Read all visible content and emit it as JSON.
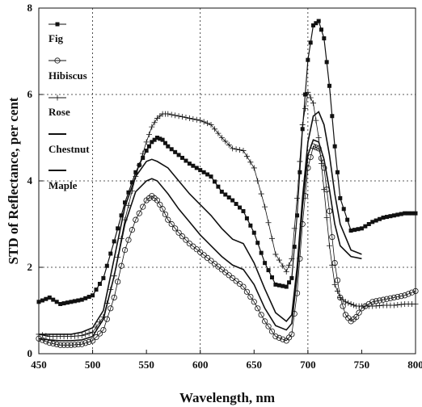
{
  "chart_data": {
    "type": "line",
    "xlabel": "Wavelength, nm",
    "ylabel": "STD of Reflectance, per cent",
    "xlim": [
      450,
      800
    ],
    "ylim": [
      0,
      8
    ],
    "x_ticks": [
      "450",
      "500",
      "550",
      "600",
      "650",
      "700",
      "750",
      "800"
    ],
    "y_ticks": [
      "0",
      "2",
      "4",
      "6",
      "8"
    ],
    "grid": "dotted, x at 500/600/700, y at 2/4/6",
    "legend_position": "top-left",
    "series": [
      {
        "name": "Fig",
        "marker": "filled-square",
        "color": "#111111",
        "x": [
          450,
          460,
          470,
          480,
          490,
          500,
          510,
          520,
          530,
          540,
          550,
          555,
          560,
          565,
          570,
          580,
          590,
          600,
          610,
          620,
          630,
          640,
          650,
          660,
          670,
          680,
          685,
          690,
          695,
          700,
          705,
          710,
          715,
          720,
          725,
          730,
          740,
          750,
          760,
          770,
          780,
          790,
          800
        ],
        "y": [
          1.2,
          1.3,
          1.15,
          1.2,
          1.25,
          1.35,
          1.75,
          2.6,
          3.5,
          4.2,
          4.7,
          4.9,
          5.0,
          4.95,
          4.8,
          4.6,
          4.4,
          4.25,
          4.1,
          3.75,
          3.55,
          3.3,
          2.8,
          2.1,
          1.6,
          1.55,
          1.75,
          3.2,
          5.2,
          6.8,
          7.6,
          7.7,
          7.3,
          6.2,
          4.8,
          3.6,
          2.85,
          2.9,
          3.05,
          3.15,
          3.2,
          3.25,
          3.25
        ]
      },
      {
        "name": "Hibiscus",
        "marker": "open-circle",
        "color": "#111111",
        "x": [
          450,
          460,
          470,
          480,
          490,
          500,
          510,
          520,
          530,
          540,
          550,
          555,
          560,
          565,
          570,
          580,
          590,
          600,
          610,
          620,
          630,
          640,
          650,
          660,
          670,
          680,
          685,
          690,
          695,
          700,
          705,
          710,
          715,
          720,
          725,
          730,
          735,
          740,
          745,
          750,
          760,
          770,
          780,
          790,
          800
        ],
        "y": [
          0.35,
          0.25,
          0.2,
          0.2,
          0.22,
          0.3,
          0.55,
          1.3,
          2.4,
          3.1,
          3.55,
          3.65,
          3.55,
          3.35,
          3.1,
          2.8,
          2.55,
          2.35,
          2.15,
          1.95,
          1.75,
          1.55,
          1.2,
          0.75,
          0.4,
          0.3,
          0.45,
          1.4,
          3.0,
          4.3,
          4.8,
          4.75,
          4.3,
          3.3,
          2.1,
          1.3,
          0.9,
          0.75,
          0.85,
          1.05,
          1.2,
          1.25,
          1.3,
          1.35,
          1.45
        ]
      },
      {
        "name": "Rose",
        "marker": "plus",
        "color": "#111111",
        "x": [
          450,
          460,
          470,
          480,
          490,
          500,
          510,
          520,
          530,
          540,
          550,
          555,
          560,
          565,
          570,
          580,
          590,
          600,
          610,
          620,
          630,
          640,
          650,
          660,
          670,
          680,
          685,
          690,
          695,
          700,
          705,
          710,
          715,
          720,
          725,
          730,
          735,
          740,
          745,
          750,
          760,
          770,
          780,
          790,
          800
        ],
        "y": [
          0.45,
          0.4,
          0.4,
          0.4,
          0.42,
          0.5,
          0.85,
          1.8,
          3.1,
          4.1,
          4.9,
          5.25,
          5.45,
          5.55,
          5.55,
          5.5,
          5.45,
          5.4,
          5.3,
          5.0,
          4.75,
          4.7,
          4.3,
          3.4,
          2.3,
          1.9,
          2.2,
          3.6,
          5.3,
          6.05,
          5.8,
          5.0,
          3.8,
          2.5,
          1.6,
          1.3,
          1.2,
          1.15,
          1.1,
          1.1,
          1.1,
          1.12,
          1.12,
          1.15,
          1.15
        ]
      },
      {
        "name": "Chestnut",
        "marker": "line",
        "color": "#111111",
        "x": [
          450,
          460,
          470,
          480,
          490,
          500,
          510,
          520,
          530,
          540,
          550,
          555,
          560,
          570,
          580,
          590,
          600,
          610,
          620,
          630,
          640,
          650,
          660,
          670,
          680,
          685,
          690,
          695,
          700,
          705,
          710,
          715,
          720,
          725,
          730,
          740,
          750
        ],
        "y": [
          0.45,
          0.45,
          0.45,
          0.45,
          0.5,
          0.6,
          1.0,
          2.2,
          3.4,
          4.1,
          4.45,
          4.5,
          4.45,
          4.3,
          4.0,
          3.7,
          3.45,
          3.2,
          2.9,
          2.65,
          2.55,
          2.1,
          1.5,
          0.95,
          0.75,
          0.9,
          2.0,
          3.6,
          4.9,
          5.5,
          5.6,
          5.3,
          4.6,
          3.7,
          3.0,
          2.4,
          2.3
        ]
      },
      {
        "name": "Maple",
        "marker": "line",
        "color": "#111111",
        "x": [
          450,
          460,
          470,
          480,
          490,
          500,
          510,
          520,
          530,
          540,
          550,
          555,
          560,
          570,
          580,
          590,
          600,
          610,
          620,
          630,
          640,
          650,
          660,
          670,
          680,
          685,
          690,
          695,
          700,
          705,
          710,
          715,
          720,
          725,
          730,
          740,
          750
        ],
        "y": [
          0.35,
          0.32,
          0.3,
          0.3,
          0.32,
          0.4,
          0.8,
          1.8,
          3.0,
          3.75,
          4.0,
          4.05,
          4.0,
          3.7,
          3.35,
          3.05,
          2.75,
          2.5,
          2.25,
          2.05,
          1.95,
          1.6,
          1.05,
          0.65,
          0.55,
          0.7,
          1.8,
          3.4,
          4.6,
          4.95,
          4.9,
          4.5,
          3.8,
          3.0,
          2.5,
          2.25,
          2.2
        ]
      }
    ]
  }
}
